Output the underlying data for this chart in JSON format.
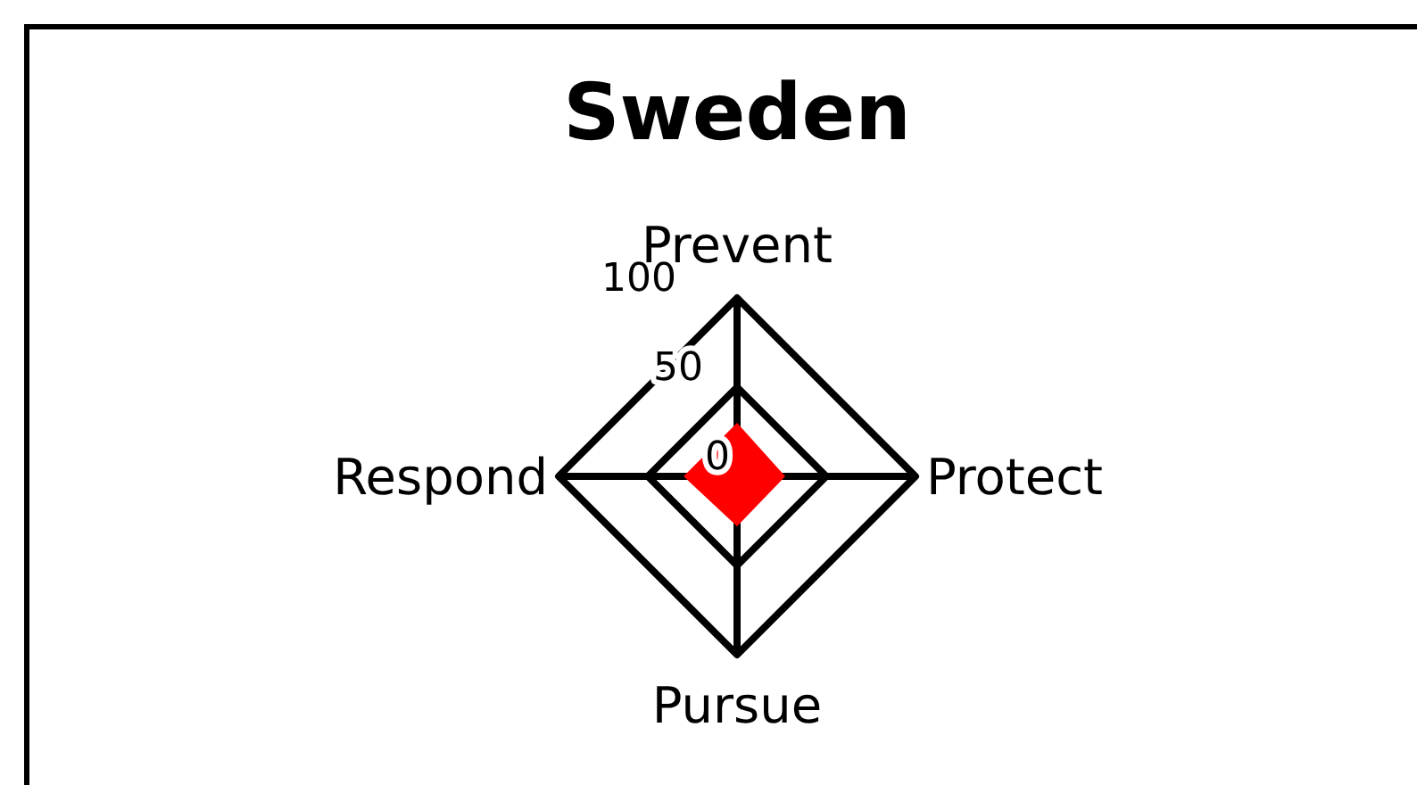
{
  "chart_data": {
    "type": "radar",
    "title": "Sweden",
    "categories": [
      "Prevent",
      "Protect",
      "Pursue",
      "Respond"
    ],
    "series": [
      {
        "color": "#ff0000",
        "values": [
          30,
          27,
          28,
          30
        ]
      }
    ],
    "ylim": [
      0,
      100
    ],
    "yticks": [
      0,
      50,
      100
    ],
    "grid": true
  }
}
